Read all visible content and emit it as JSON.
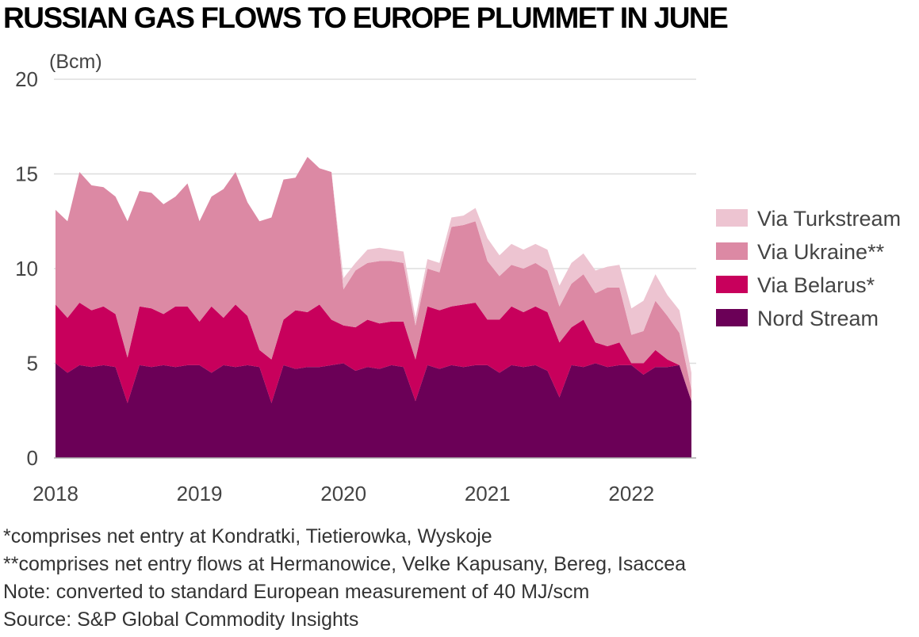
{
  "title": "RUSSIAN GAS FLOWS TO EUROPE PLUMMET IN JUNE",
  "colors": {
    "nord_stream": "#6b0057",
    "belarus": "#c8005c",
    "ukraine": "#dc89a4",
    "turkstream": "#edc4d1",
    "grid": "#dddddd",
    "axis": "#aaaaaa"
  },
  "chart_data": {
    "type": "area",
    "stacked": true,
    "ylabel": "(Bcm)",
    "ylim": [
      0,
      20
    ],
    "yticks": [
      "0",
      "5",
      "10",
      "15",
      "20"
    ],
    "x_tick_labels": [
      "2018",
      "2019",
      "2020",
      "2021",
      "2022"
    ],
    "x_start": "2018-01",
    "x_end": "2022-06",
    "x": [
      "2018-01",
      "2018-02",
      "2018-03",
      "2018-04",
      "2018-05",
      "2018-06",
      "2018-07",
      "2018-08",
      "2018-09",
      "2018-10",
      "2018-11",
      "2018-12",
      "2019-01",
      "2019-02",
      "2019-03",
      "2019-04",
      "2019-05",
      "2019-06",
      "2019-07",
      "2019-08",
      "2019-09",
      "2019-10",
      "2019-11",
      "2019-12",
      "2020-01",
      "2020-02",
      "2020-03",
      "2020-04",
      "2020-05",
      "2020-06",
      "2020-07",
      "2020-08",
      "2020-09",
      "2020-10",
      "2020-11",
      "2020-12",
      "2021-01",
      "2021-02",
      "2021-03",
      "2021-04",
      "2021-05",
      "2021-06",
      "2021-07",
      "2021-08",
      "2021-09",
      "2021-10",
      "2021-11",
      "2021-12",
      "2022-01",
      "2022-02",
      "2022-03",
      "2022-04",
      "2022-05",
      "2022-06"
    ],
    "legend_position": "right",
    "grid": true,
    "series": [
      {
        "name": "Nord Stream",
        "color_key": "nord_stream",
        "values": [
          5.0,
          4.5,
          4.9,
          4.8,
          4.9,
          4.8,
          2.9,
          4.9,
          4.8,
          4.9,
          4.8,
          4.9,
          4.9,
          4.5,
          4.9,
          4.8,
          4.9,
          4.8,
          2.9,
          4.9,
          4.7,
          4.8,
          4.8,
          4.9,
          5.0,
          4.6,
          4.8,
          4.7,
          4.9,
          4.8,
          3.0,
          4.9,
          4.7,
          4.9,
          4.8,
          4.9,
          4.9,
          4.5,
          4.9,
          4.8,
          4.9,
          4.6,
          3.2,
          4.9,
          4.8,
          5.0,
          4.8,
          4.9,
          4.9,
          4.4,
          4.8,
          4.8,
          4.9,
          3.0
        ]
      },
      {
        "name": "Via Belarus*",
        "color_key": "belarus",
        "values": [
          3.1,
          2.9,
          3.3,
          3.0,
          3.1,
          2.8,
          2.4,
          3.1,
          3.1,
          2.7,
          3.2,
          3.1,
          2.3,
          3.5,
          2.5,
          3.3,
          2.6,
          0.9,
          2.3,
          2.4,
          3.1,
          2.9,
          3.3,
          2.4,
          2.0,
          2.3,
          2.5,
          2.4,
          2.3,
          2.4,
          2.2,
          3.1,
          3.1,
          3.1,
          3.3,
          3.3,
          2.4,
          2.8,
          3.1,
          2.9,
          3.1,
          3.1,
          2.9,
          2.0,
          2.5,
          1.1,
          1.1,
          1.2,
          0.1,
          0.6,
          0.9,
          0.4,
          0.0,
          0.0
        ]
      },
      {
        "name": "Via Ukraine**",
        "color_key": "ukraine",
        "values": [
          5.0,
          5.1,
          6.9,
          6.6,
          6.3,
          6.2,
          7.2,
          6.1,
          6.1,
          5.8,
          5.8,
          6.5,
          5.3,
          5.8,
          6.8,
          7.0,
          6.0,
          6.8,
          7.5,
          7.4,
          7.0,
          8.2,
          7.2,
          7.8,
          1.9,
          3.0,
          3.0,
          3.3,
          3.2,
          3.1,
          1.8,
          2.0,
          2.0,
          4.2,
          4.2,
          4.3,
          3.1,
          2.3,
          2.2,
          2.3,
          2.3,
          2.2,
          1.9,
          2.3,
          2.4,
          2.6,
          3.1,
          2.9,
          1.5,
          1.7,
          2.6,
          2.3,
          1.7,
          0.6
        ]
      },
      {
        "name": "Via Turkstream",
        "color_key": "turkstream",
        "values": [
          0,
          0,
          0,
          0,
          0,
          0,
          0,
          0,
          0,
          0,
          0,
          0,
          0,
          0,
          0,
          0,
          0,
          0,
          0,
          0,
          0,
          0,
          0,
          0,
          0.6,
          0.4,
          0.7,
          0.7,
          0.6,
          0.6,
          0.4,
          0.5,
          0.5,
          0.5,
          0.5,
          0.7,
          1.2,
          1.1,
          1.1,
          1.0,
          1.0,
          1.1,
          1.1,
          1.1,
          1.1,
          1.2,
          1.1,
          1.2,
          1.4,
          1.6,
          1.4,
          1.1,
          1.2,
          0.9
        ]
      }
    ]
  },
  "legend_items": [
    {
      "label": "Via Turkstream",
      "color_key": "turkstream"
    },
    {
      "label": "Via Ukraine**",
      "color_key": "ukraine"
    },
    {
      "label": "Via Belarus*",
      "color_key": "belarus"
    },
    {
      "label": "Nord Stream",
      "color_key": "nord_stream"
    }
  ],
  "notes": [
    "*comprises net entry at Kondratki, Tietierowka, Wyskoje",
    "**comprises net entry flows at Hermanowice, Velke Kapusany, Bereg, Isaccea",
    "Note: converted to standard European measurement of 40 MJ/scm",
    "Source: S&P Global Commodity Insights"
  ]
}
